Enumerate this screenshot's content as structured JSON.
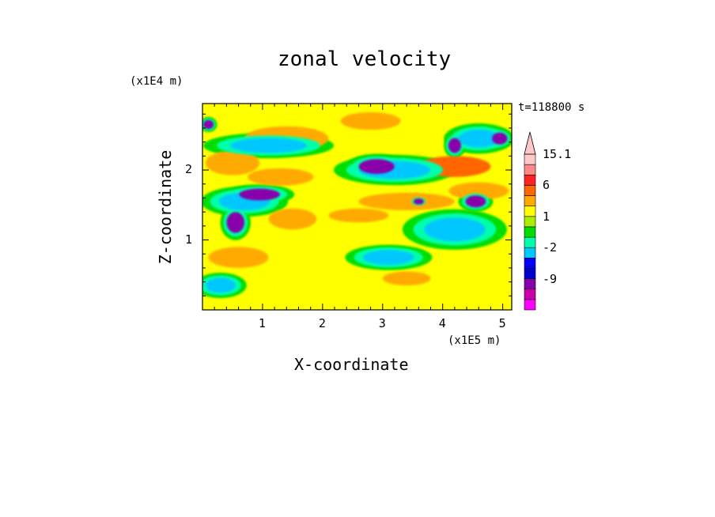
{
  "chart_data": {
    "type": "heatmap",
    "title": "zonal velocity",
    "xlabel": "X-coordinate",
    "ylabel": "Z-coordinate",
    "x_multiplier": "(x1E5 m)",
    "y_multiplier": "(x1E4 m)",
    "time_label": "t=118800 s",
    "xlim": [
      0,
      5.15
    ],
    "ylim": [
      0,
      2.95
    ],
    "x_ticks": [
      1,
      2,
      3,
      4,
      5
    ],
    "y_ticks": [
      1,
      2
    ],
    "x_tick_labels": [
      "1",
      "2",
      "3",
      "4",
      "5"
    ],
    "y_tick_labels": [
      "1",
      "2"
    ],
    "colorbar": {
      "labels": [
        "15.1",
        "6",
        "1",
        "-2",
        "-9"
      ],
      "levels": [
        -15,
        -12,
        -9,
        -6,
        -4,
        -2,
        -1,
        0,
        1,
        2,
        4,
        6,
        9,
        12,
        15.1
      ],
      "colors": [
        "#ff00ff",
        "#cc00aa",
        "#8800aa",
        "#0000cc",
        "#0000ff",
        "#00c8ff",
        "#00ffaa",
        "#00dd00",
        "#aaee00",
        "#ffff00",
        "#ffaa00",
        "#ff6600",
        "#ff2222",
        "#ff8888",
        "#ffc8c8"
      ]
    },
    "zones": [
      {
        "x": 1.4,
        "z": 2.45,
        "width": 1.4,
        "height": 0.35,
        "value": 4
      },
      {
        "x": 2.8,
        "z": 2.7,
        "width": 1.0,
        "height": 0.25,
        "value": 4
      },
      {
        "x": 0.5,
        "z": 2.1,
        "width": 0.9,
        "height": 0.35,
        "value": 4
      },
      {
        "x": 1.3,
        "z": 1.9,
        "width": 1.1,
        "height": 0.25,
        "value": 4
      },
      {
        "x": 4.2,
        "z": 2.05,
        "width": 1.2,
        "height": 0.3,
        "value": 6
      },
      {
        "x": 4.6,
        "z": 1.7,
        "width": 1.0,
        "height": 0.25,
        "value": 4
      },
      {
        "x": 3.4,
        "z": 1.55,
        "width": 1.6,
        "height": 0.25,
        "value": 4
      },
      {
        "x": 2.6,
        "z": 1.35,
        "width": 1.0,
        "height": 0.2,
        "value": 4
      },
      {
        "x": 0.6,
        "z": 0.75,
        "width": 1.0,
        "height": 0.3,
        "value": 4
      },
      {
        "x": 3.4,
        "z": 0.45,
        "width": 0.8,
        "height": 0.2,
        "value": 4
      },
      {
        "x": 1.5,
        "z": 1.3,
        "width": 0.8,
        "height": 0.3,
        "value": 4
      },
      {
        "x": 1.1,
        "z": 2.35,
        "width": 1.5,
        "height": 0.25,
        "value": -2
      },
      {
        "x": 3.2,
        "z": 2.0,
        "width": 1.4,
        "height": 0.3,
        "value": -2
      },
      {
        "x": 0.7,
        "z": 1.55,
        "width": 1.0,
        "height": 0.3,
        "value": -2
      },
      {
        "x": 3.1,
        "z": 0.75,
        "width": 1.0,
        "height": 0.25,
        "value": -2
      },
      {
        "x": 4.2,
        "z": 1.15,
        "width": 1.2,
        "height": 0.4,
        "value": -2
      },
      {
        "x": 0.3,
        "z": 0.35,
        "width": 0.6,
        "height": 0.25,
        "value": -2
      },
      {
        "x": 4.6,
        "z": 2.45,
        "width": 0.8,
        "height": 0.3,
        "value": -2
      },
      {
        "x": 2.9,
        "z": 2.05,
        "width": 0.7,
        "height": 0.25,
        "value": -9
      },
      {
        "x": 0.95,
        "z": 1.65,
        "width": 0.8,
        "height": 0.2,
        "value": -9
      },
      {
        "x": 0.55,
        "z": 1.25,
        "width": 0.35,
        "height": 0.35,
        "value": -9
      },
      {
        "x": 4.95,
        "z": 2.45,
        "width": 0.3,
        "height": 0.2,
        "value": -9
      },
      {
        "x": 4.55,
        "z": 1.55,
        "width": 0.4,
        "height": 0.2,
        "value": -9
      },
      {
        "x": 4.2,
        "z": 2.35,
        "width": 0.25,
        "height": 0.25,
        "value": -9
      },
      {
        "x": 0.1,
        "z": 2.65,
        "width": 0.2,
        "height": 0.15,
        "value": -9
      },
      {
        "x": 3.6,
        "z": 1.55,
        "width": 0.2,
        "height": 0.1,
        "value": -9
      }
    ]
  }
}
